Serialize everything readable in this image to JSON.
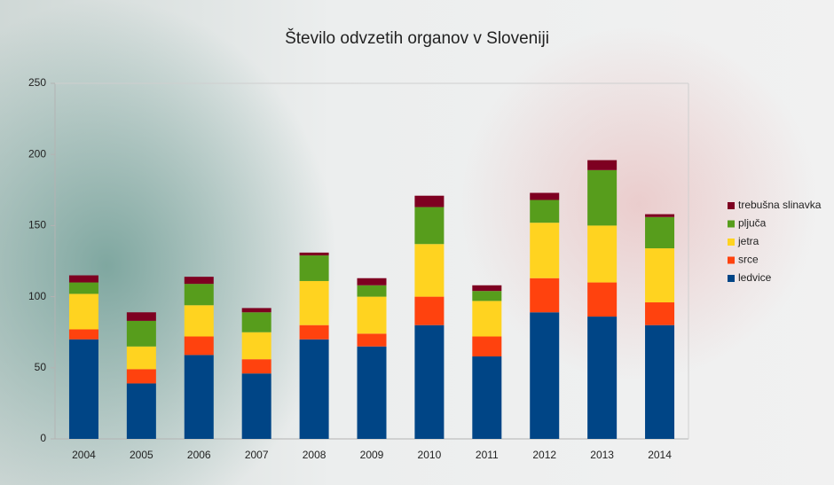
{
  "chart_data": {
    "type": "stacked_bar",
    "title": "Število odvzetih organov v Sloveniji",
    "categories": [
      "2004",
      "2005",
      "2006",
      "2007",
      "2008",
      "2009",
      "2010",
      "2011",
      "2012",
      "2013",
      "2014"
    ],
    "series": [
      {
        "name": "ledvice",
        "color": "#004586",
        "values": [
          70,
          39,
          59,
          46,
          70,
          65,
          80,
          58,
          89,
          86,
          80
        ]
      },
      {
        "name": "srce",
        "color": "#ff420e",
        "values": [
          7,
          10,
          13,
          10,
          10,
          9,
          20,
          14,
          24,
          24,
          16
        ]
      },
      {
        "name": "jetra",
        "color": "#ffd320",
        "values": [
          25,
          16,
          22,
          19,
          31,
          26,
          37,
          25,
          39,
          40,
          38
        ]
      },
      {
        "name": "pljuča",
        "color": "#579d1c",
        "values": [
          8,
          18,
          15,
          14,
          18,
          8,
          26,
          7,
          16,
          39,
          22
        ]
      },
      {
        "name": "trebušna slinavka",
        "color": "#7e0021",
        "values": [
          5,
          6,
          5,
          3,
          2,
          5,
          8,
          4,
          5,
          7,
          2
        ]
      }
    ],
    "ylim": [
      0,
      250
    ],
    "yticks": [
      0,
      50,
      100,
      150,
      200,
      250
    ],
    "legend": "right"
  }
}
